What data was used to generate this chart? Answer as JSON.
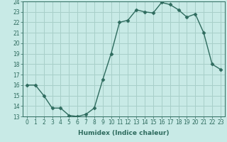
{
  "x": [
    0,
    1,
    2,
    3,
    4,
    5,
    6,
    7,
    8,
    9,
    10,
    11,
    12,
    13,
    14,
    15,
    16,
    17,
    18,
    19,
    20,
    21,
    22,
    23
  ],
  "y": [
    16,
    16,
    15,
    13.8,
    13.8,
    13.1,
    13.0,
    13.2,
    13.8,
    16.5,
    19.0,
    22.0,
    22.2,
    23.2,
    23.0,
    22.9,
    23.9,
    23.7,
    23.2,
    22.5,
    22.8,
    21.0,
    18.0,
    17.5
  ],
  "line_color": "#2e6b5e",
  "marker_color": "#2e6b5e",
  "bg_color": "#c8eae6",
  "grid_color": "#a8cfc9",
  "xlabel": "Humidex (Indice chaleur)",
  "ylim": [
    13,
    24
  ],
  "xlim_min": -0.5,
  "xlim_max": 23.5,
  "yticks": [
    13,
    14,
    15,
    16,
    17,
    18,
    19,
    20,
    21,
    22,
    23,
    24
  ],
  "xticks": [
    0,
    1,
    2,
    3,
    4,
    5,
    6,
    7,
    8,
    9,
    10,
    11,
    12,
    13,
    14,
    15,
    16,
    17,
    18,
    19,
    20,
    21,
    22,
    23
  ],
  "tick_label_fontsize": 5.5,
  "xlabel_fontsize": 6.5,
  "line_width": 1.0,
  "marker_size": 2.5
}
